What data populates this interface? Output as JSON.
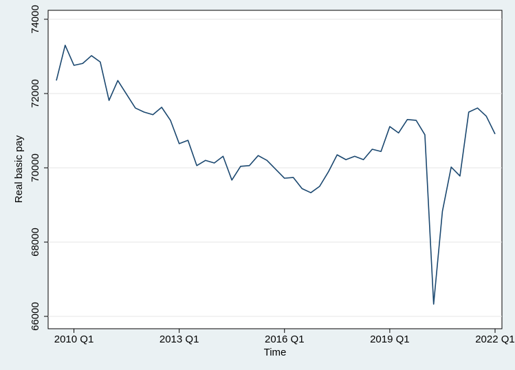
{
  "chart_data": {
    "type": "line",
    "xlabel": "Time",
    "ylabel": "Real basic pay",
    "categories": [
      null,
      null,
      "2010 Q1",
      null,
      null,
      null,
      null,
      null,
      null,
      null,
      null,
      null,
      null,
      null,
      "2013 Q1",
      null,
      null,
      null,
      null,
      null,
      null,
      null,
      null,
      null,
      null,
      null,
      "2016 Q1",
      null,
      null,
      null,
      null,
      null,
      null,
      null,
      null,
      null,
      null,
      null,
      "2019 Q1",
      null,
      null,
      null,
      null,
      null,
      null,
      null,
      null,
      null,
      null,
      null,
      "2022 Q1"
    ],
    "series": [
      {
        "color": "#1a476f",
        "values": [
          72350,
          73300,
          72760,
          72810,
          73020,
          72850,
          71815,
          72350,
          71980,
          71610,
          71500,
          71430,
          71630,
          71280,
          70650,
          70740,
          70060,
          70200,
          70130,
          70310,
          69670,
          70040,
          70060,
          70330,
          70200,
          69960,
          69720,
          69740,
          69440,
          69330,
          69500,
          69890,
          70350,
          70220,
          70310,
          70220,
          70500,
          70440,
          71110,
          70940,
          71300,
          71280,
          70890,
          66330,
          68830,
          70020,
          69780,
          71500,
          71610,
          71390,
          70910
        ]
      }
    ],
    "ylim": [
      65667,
      74241
    ],
    "yticks": [
      66000,
      68000,
      70000,
      72000,
      74000
    ],
    "grid": true
  }
}
